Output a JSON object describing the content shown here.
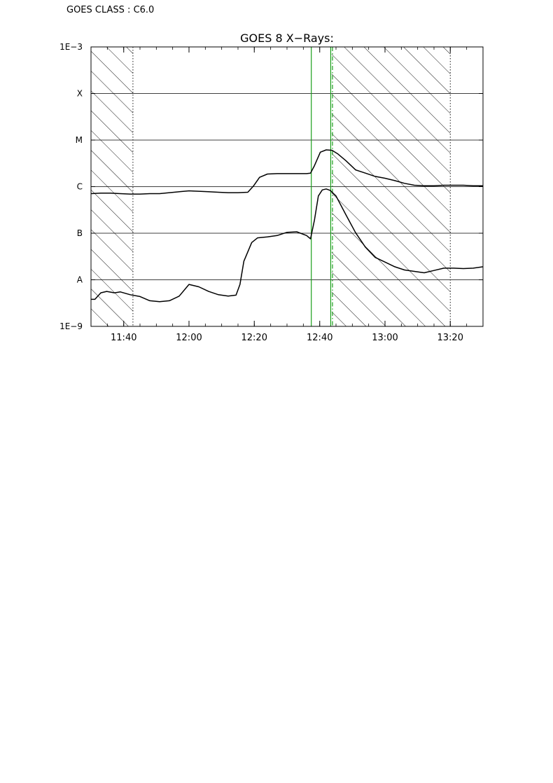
{
  "header": {
    "goes_class_label": "GOES CLASS : C6.0"
  },
  "chart_data": {
    "type": "line",
    "title": "GOES 8 X−Rays:",
    "xlabel": "",
    "ylabel": "",
    "x_unit": "time (hours)",
    "xlim": [
      11.5,
      13.5
    ],
    "ylim_log10": [
      -9,
      -3
    ],
    "y_scale": "log",
    "y_tick_labels": [
      {
        "label": "1E−3",
        "log10": -3
      },
      {
        "label": "X",
        "log10": -4
      },
      {
        "label": "M",
        "log10": -5
      },
      {
        "label": "C",
        "log10": -6
      },
      {
        "label": "B",
        "log10": -7
      },
      {
        "label": "A",
        "log10": -8
      },
      {
        "label": "1E−9",
        "log10": -9
      }
    ],
    "gridlines_log10": [
      -4,
      -5,
      -6,
      -7,
      -8
    ],
    "x_ticks": [
      {
        "label": "11:40",
        "t": 11.667
      },
      {
        "label": "12:00",
        "t": 12.0
      },
      {
        "label": "12:20",
        "t": 12.333
      },
      {
        "label": "12:40",
        "t": 12.667
      },
      {
        "label": "13:00",
        "t": 13.0
      },
      {
        "label": "13:20",
        "t": 13.333
      }
    ],
    "series": [
      {
        "color": "#000000",
        "points": [
          [
            11.5,
            -6.15
          ],
          [
            11.55,
            -6.14
          ],
          [
            11.6,
            -6.14
          ],
          [
            11.65,
            -6.15
          ],
          [
            11.7,
            -6.16
          ],
          [
            11.75,
            -6.16
          ],
          [
            11.8,
            -6.15
          ],
          [
            11.85,
            -6.15
          ],
          [
            11.9,
            -6.13
          ],
          [
            11.95,
            -6.11
          ],
          [
            12.0,
            -6.09
          ],
          [
            12.05,
            -6.1
          ],
          [
            12.1,
            -6.11
          ],
          [
            12.15,
            -6.12
          ],
          [
            12.2,
            -6.13
          ],
          [
            12.25,
            -6.13
          ],
          [
            12.3,
            -6.12
          ],
          [
            12.33,
            -5.98
          ],
          [
            12.36,
            -5.8
          ],
          [
            12.4,
            -5.73
          ],
          [
            12.45,
            -5.72
          ],
          [
            12.5,
            -5.72
          ],
          [
            12.55,
            -5.72
          ],
          [
            12.6,
            -5.72
          ],
          [
            12.62,
            -5.71
          ],
          [
            12.64,
            -5.55
          ],
          [
            12.67,
            -5.26
          ],
          [
            12.7,
            -5.21
          ],
          [
            12.73,
            -5.22
          ],
          [
            12.76,
            -5.3
          ],
          [
            12.8,
            -5.44
          ],
          [
            12.85,
            -5.64
          ],
          [
            12.9,
            -5.71
          ],
          [
            12.95,
            -5.78
          ],
          [
            13.0,
            -5.82
          ],
          [
            13.05,
            -5.87
          ],
          [
            13.1,
            -5.93
          ],
          [
            13.15,
            -5.97
          ],
          [
            13.2,
            -5.98
          ],
          [
            13.25,
            -5.98
          ],
          [
            13.3,
            -5.97
          ],
          [
            13.35,
            -5.97
          ],
          [
            13.4,
            -5.97
          ],
          [
            13.45,
            -5.98
          ],
          [
            13.5,
            -5.98
          ]
        ]
      },
      {
        "color": "#000000",
        "points": [
          [
            11.5,
            -8.42
          ],
          [
            11.52,
            -8.42
          ],
          [
            11.55,
            -8.28
          ],
          [
            11.58,
            -8.25
          ],
          [
            11.62,
            -8.28
          ],
          [
            11.65,
            -8.26
          ],
          [
            11.7,
            -8.32
          ],
          [
            11.75,
            -8.36
          ],
          [
            11.8,
            -8.45
          ],
          [
            11.85,
            -8.47
          ],
          [
            11.9,
            -8.45
          ],
          [
            11.95,
            -8.35
          ],
          [
            12.0,
            -8.1
          ],
          [
            12.05,
            -8.15
          ],
          [
            12.1,
            -8.25
          ],
          [
            12.15,
            -8.32
          ],
          [
            12.2,
            -8.35
          ],
          [
            12.24,
            -8.33
          ],
          [
            12.26,
            -8.1
          ],
          [
            12.28,
            -7.6
          ],
          [
            12.32,
            -7.2
          ],
          [
            12.35,
            -7.1
          ],
          [
            12.4,
            -7.08
          ],
          [
            12.45,
            -7.05
          ],
          [
            12.5,
            -6.98
          ],
          [
            12.55,
            -6.97
          ],
          [
            12.6,
            -7.05
          ],
          [
            12.62,
            -7.12
          ],
          [
            12.64,
            -6.72
          ],
          [
            12.66,
            -6.2
          ],
          [
            12.68,
            -6.07
          ],
          [
            12.7,
            -6.05
          ],
          [
            12.72,
            -6.08
          ],
          [
            12.75,
            -6.2
          ],
          [
            12.8,
            -6.6
          ],
          [
            12.85,
            -6.99
          ],
          [
            12.9,
            -7.3
          ],
          [
            12.95,
            -7.52
          ],
          [
            13.0,
            -7.62
          ],
          [
            13.05,
            -7.72
          ],
          [
            13.1,
            -7.79
          ],
          [
            13.15,
            -7.82
          ],
          [
            13.2,
            -7.85
          ],
          [
            13.25,
            -7.8
          ],
          [
            13.3,
            -7.75
          ],
          [
            13.35,
            -7.75
          ],
          [
            13.4,
            -7.76
          ],
          [
            13.45,
            -7.75
          ],
          [
            13.5,
            -7.72
          ]
        ]
      }
    ],
    "shaded_intervals": [
      [
        11.5,
        11.714
      ],
      [
        12.728,
        13.333
      ]
    ],
    "dotted_vlines": [
      11.714,
      13.333
    ],
    "marker_lines": [
      {
        "t": 12.624,
        "style": "solid",
        "color": "#1a9e1a"
      },
      {
        "t": 12.723,
        "style": "solid",
        "color": "#1a9e1a"
      },
      {
        "t": 12.732,
        "style": "dashdot",
        "color": "#1a9e1a"
      }
    ],
    "grid": true,
    "legend": "none"
  }
}
